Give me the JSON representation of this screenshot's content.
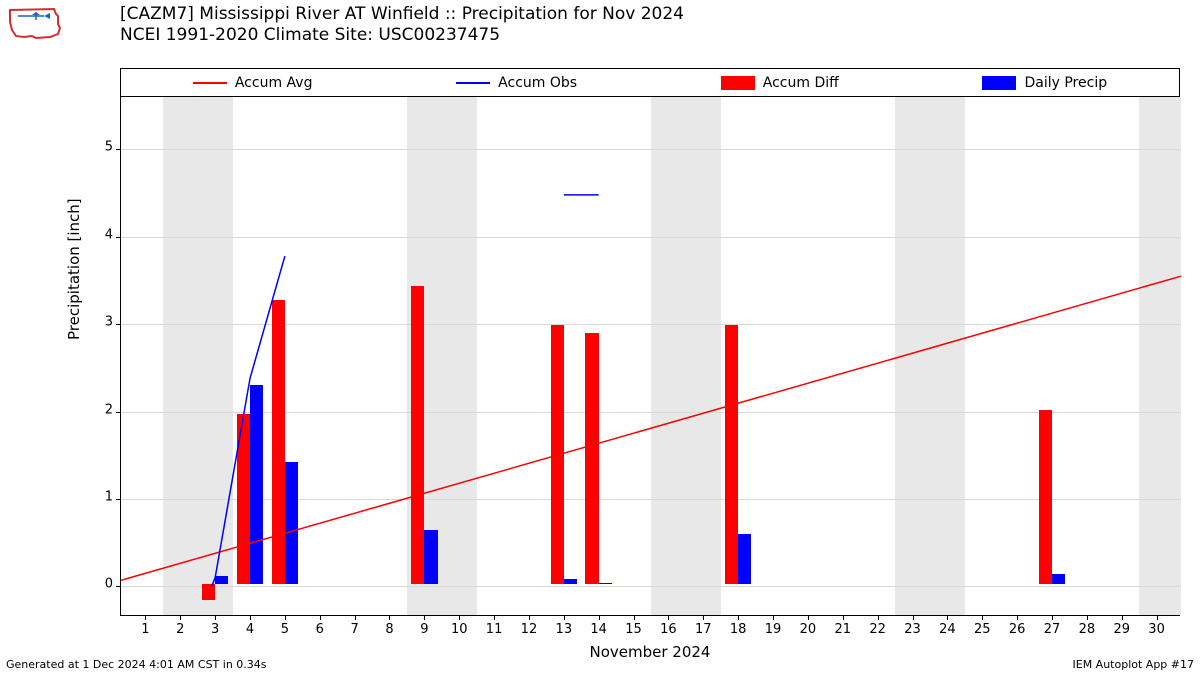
{
  "title_line1": "[CAZM7] Mississippi River  AT Winfield :: Precipitation for Nov 2024",
  "title_line2": "NCEI 1991-2020 Climate Site: USC00237475",
  "legend": {
    "accum_avg": {
      "label": "Accum Avg",
      "color": "#ff0000",
      "type": "line"
    },
    "accum_obs": {
      "label": "Accum Obs",
      "color": "#0000ff",
      "type": "line"
    },
    "accum_diff": {
      "label": "Accum Diff",
      "color": "#ff0000",
      "type": "bar"
    },
    "daily_precip": {
      "label": "Daily Precip",
      "color": "#0000ff",
      "type": "bar"
    }
  },
  "chart": {
    "type": "bar+line",
    "xlabel": "November 2024",
    "ylabel": "Precipitation [inch]",
    "xlim": [
      0.3,
      30.7
    ],
    "ylim": [
      -0.35,
      5.6
    ],
    "xtick_start": 1,
    "xtick_end": 30,
    "xtick_step": 1,
    "yticks": [
      0,
      1,
      2,
      3,
      4,
      5
    ],
    "grid_color": "#d9d9d9",
    "weekend_band_color": "#e8e8e8",
    "weekend_bands": [
      [
        1.5,
        3.5
      ],
      [
        8.5,
        10.5
      ],
      [
        15.5,
        17.5
      ],
      [
        22.5,
        24.5
      ],
      [
        29.5,
        30.7
      ]
    ],
    "bars_accum_diff": {
      "color": "#ff0000",
      "width": 0.38,
      "offset": -0.19,
      "data": {
        "3": -0.18,
        "4": 1.95,
        "5": 3.25,
        "9": 3.42,
        "13": 2.97,
        "14": 2.88,
        "18": 2.97,
        "27": 2.0
      }
    },
    "bars_daily_precip": {
      "color": "#0000ff",
      "width": 0.38,
      "offset": 0.19,
      "data": {
        "3": 0.1,
        "4": 2.28,
        "5": 1.4,
        "9": 0.62,
        "13": 0.06,
        "14": 0.02,
        "18": 0.58,
        "27": 0.12
      }
    },
    "line_accum_avg": {
      "color": "#ff0000",
      "width": 1.5,
      "points": [
        [
          0.3,
          0.07
        ],
        [
          30.7,
          3.55
        ]
      ]
    },
    "line_accum_obs": {
      "color": "#0000ff",
      "width": 1.5,
      "segments": [
        [
          [
            2.9,
            0.0
          ],
          [
            3.0,
            0.1
          ],
          [
            4.0,
            2.38
          ],
          [
            5.0,
            3.78
          ]
        ],
        [
          [
            13.0,
            4.48
          ],
          [
            14.0,
            4.48
          ]
        ]
      ]
    }
  },
  "footer_left": "Generated at 1 Dec 2024 4:01 AM CST in 0.34s",
  "footer_right": "IEM Autoplot App #17",
  "logo": {
    "outline_color": "#d32f2f",
    "accent_color": "#1565c0"
  }
}
